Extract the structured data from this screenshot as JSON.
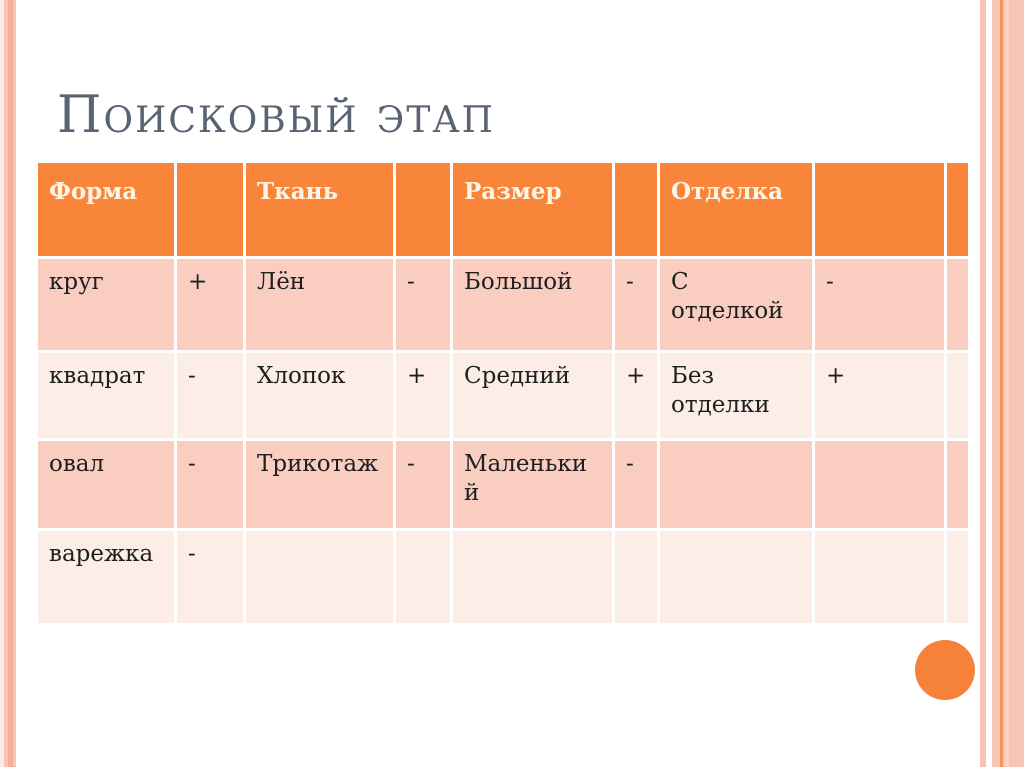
{
  "slide": {
    "title": "Поисковый этап"
  },
  "theme": {
    "header_bg": "#F8853A",
    "header_text": "#FCF5E4",
    "row_odd_bg": "#F9CEC0",
    "row_even_bg": "#FCEDE6",
    "cell_text": "#1E1E1E",
    "title_color": "#5A6374",
    "circle_color": "#F6813B",
    "stripe_faint": "#FCEBE5",
    "stripe_light": "#FAD3C4",
    "stripe_mid": "#F7C5B4",
    "stripe_dark": "#F3AF99",
    "stripe_accent": "#EC9760"
  },
  "table": {
    "header": [
      "Форма",
      "",
      "Ткань",
      "",
      "Размер",
      "",
      "Отделка",
      "",
      ""
    ],
    "rows": [
      [
        "круг",
        "+",
        "Лён",
        "-",
        "Большой",
        "-",
        "С\nотделкой",
        "-",
        ""
      ],
      [
        "квадрат",
        "-",
        "Хлопок",
        "+",
        "Средний",
        "+",
        "Без\nотделки",
        "+",
        ""
      ],
      [
        "овал",
        "-",
        "Трикотаж",
        "-",
        "Маленьки\nй",
        "-",
        "",
        "",
        ""
      ],
      [
        "варежка",
        "-",
        "",
        "",
        "",
        "",
        "",
        "",
        ""
      ]
    ]
  }
}
